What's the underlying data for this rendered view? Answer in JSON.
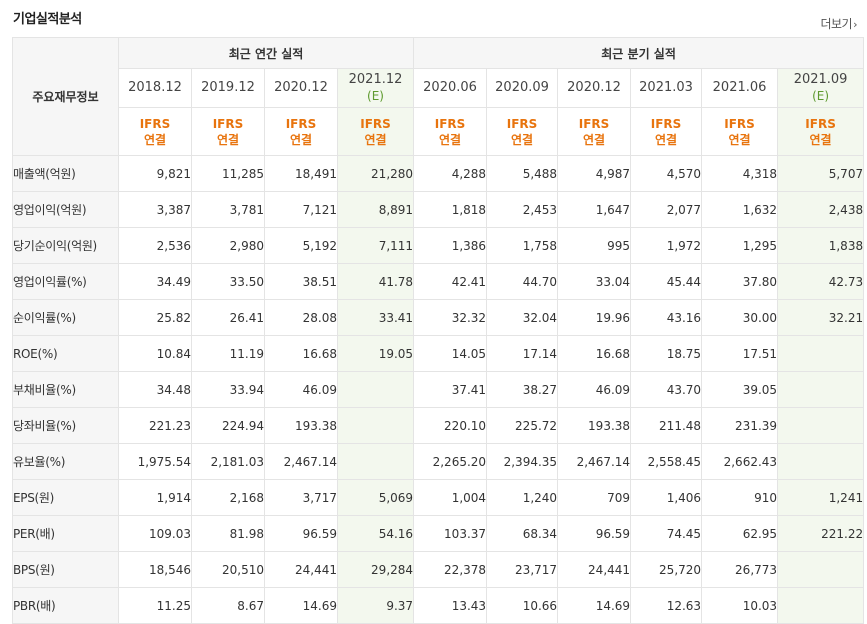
{
  "page": {
    "title": "기업실적분석",
    "more_label": "더보기",
    "more_arrow": "›"
  },
  "table": {
    "label_header": "주요재무정보",
    "groups": {
      "annual": "최근 연간 실적",
      "quarterly": "최근 분기 실적"
    },
    "annual_periods": [
      {
        "label": "2018.12",
        "est": ""
      },
      {
        "label": "2019.12",
        "est": ""
      },
      {
        "label": "2020.12",
        "est": ""
      },
      {
        "label": "2021.12",
        "est": "(E)"
      }
    ],
    "quarter_periods": [
      {
        "label": "2020.06",
        "est": ""
      },
      {
        "label": "2020.09",
        "est": ""
      },
      {
        "label": "2020.12",
        "est": ""
      },
      {
        "label": "2021.03",
        "est": ""
      },
      {
        "label": "2021.06",
        "est": ""
      },
      {
        "label": "2021.09",
        "est": "(E)"
      }
    ],
    "standard_line1": "IFRS",
    "standard_line2": "연결",
    "rows": [
      {
        "label": "매출액(억원)",
        "values": [
          "9,821",
          "11,285",
          "18,491",
          "21,280",
          "4,288",
          "5,488",
          "4,987",
          "4,570",
          "4,318",
          "5,707"
        ]
      },
      {
        "label": "영업이익(억원)",
        "values": [
          "3,387",
          "3,781",
          "7,121",
          "8,891",
          "1,818",
          "2,453",
          "1,647",
          "2,077",
          "1,632",
          "2,438"
        ]
      },
      {
        "label": "당기순이익(억원)",
        "values": [
          "2,536",
          "2,980",
          "5,192",
          "7,111",
          "1,386",
          "1,758",
          "995",
          "1,972",
          "1,295",
          "1,838"
        ]
      },
      {
        "label": "영업이익률(%)",
        "values": [
          "34.49",
          "33.50",
          "38.51",
          "41.78",
          "42.41",
          "44.70",
          "33.04",
          "45.44",
          "37.80",
          "42.73"
        ]
      },
      {
        "label": "순이익률(%)",
        "values": [
          "25.82",
          "26.41",
          "28.08",
          "33.41",
          "32.32",
          "32.04",
          "19.96",
          "43.16",
          "30.00",
          "32.21"
        ]
      },
      {
        "label": "ROE(%)",
        "values": [
          "10.84",
          "11.19",
          "16.68",
          "19.05",
          "14.05",
          "17.14",
          "16.68",
          "18.75",
          "17.51",
          ""
        ]
      },
      {
        "label": "부채비율(%)",
        "values": [
          "34.48",
          "33.94",
          "46.09",
          "",
          "37.41",
          "38.27",
          "46.09",
          "43.70",
          "39.05",
          ""
        ]
      },
      {
        "label": "당좌비율(%)",
        "values": [
          "221.23",
          "224.94",
          "193.38",
          "",
          "220.10",
          "225.72",
          "193.38",
          "211.48",
          "231.39",
          ""
        ]
      },
      {
        "label": "유보율(%)",
        "values": [
          "1,975.54",
          "2,181.03",
          "2,467.14",
          "",
          "2,265.20",
          "2,394.35",
          "2,467.14",
          "2,558.45",
          "2,662.43",
          ""
        ]
      },
      {
        "label": "EPS(원)",
        "values": [
          "1,914",
          "2,168",
          "3,717",
          "5,069",
          "1,004",
          "1,240",
          "709",
          "1,406",
          "910",
          "1,241"
        ]
      },
      {
        "label": "PER(배)",
        "values": [
          "109.03",
          "81.98",
          "96.59",
          "54.16",
          "103.37",
          "68.34",
          "96.59",
          "74.45",
          "62.95",
          "221.22"
        ]
      },
      {
        "label": "BPS(원)",
        "values": [
          "18,546",
          "20,510",
          "24,441",
          "29,284",
          "22,378",
          "23,717",
          "24,441",
          "25,720",
          "26,773",
          ""
        ]
      },
      {
        "label": "PBR(배)",
        "values": [
          "11.25",
          "8.67",
          "14.69",
          "9.37",
          "13.43",
          "10.66",
          "14.69",
          "12.63",
          "10.03",
          ""
        ]
      }
    ]
  }
}
